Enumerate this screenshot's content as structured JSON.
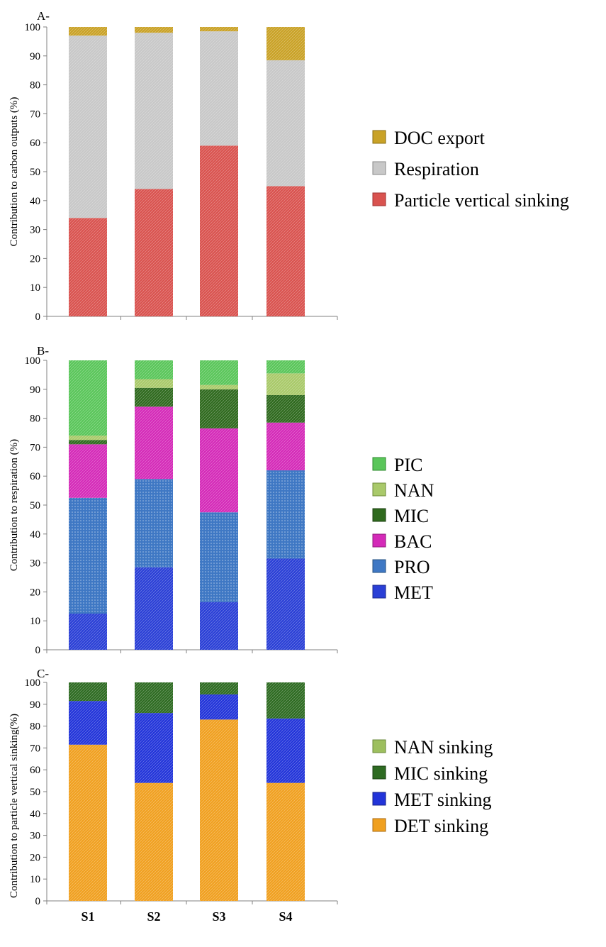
{
  "chart_data": [
    {
      "type": "bar",
      "stacked": true,
      "panel_label": "A-",
      "ylabel": "Contribution to carbon outputs (%)",
      "ylim": [
        0,
        100
      ],
      "yticks": [
        0,
        10,
        20,
        30,
        40,
        50,
        60,
        70,
        80,
        90,
        100
      ],
      "categories": [
        "S1",
        "S2",
        "S3",
        "S4"
      ],
      "series": [
        {
          "name": "Particle vertical sinking",
          "color": "#d9534f",
          "values": [
            34,
            44,
            59,
            45
          ]
        },
        {
          "name": "Respiration",
          "color": "#c8c8c8",
          "values": [
            63,
            54,
            39.5,
            43.5
          ]
        },
        {
          "name": "DOC export",
          "color": "#c9a227",
          "values": [
            3,
            2,
            1.5,
            11.5
          ]
        }
      ]
    },
    {
      "type": "bar",
      "stacked": true,
      "panel_label": "B-",
      "ylabel": "Contribution to respiration (%)",
      "ylim": [
        0,
        100
      ],
      "yticks": [
        0,
        10,
        20,
        30,
        40,
        50,
        60,
        70,
        80,
        90,
        100
      ],
      "categories": [
        "S1",
        "S2",
        "S3",
        "S4"
      ],
      "series": [
        {
          "name": "MET",
          "color": "#2a3fd6",
          "values": [
            12.5,
            28.5,
            16.5,
            31.5
          ]
        },
        {
          "name": "PRO",
          "color": "#3f78c4",
          "values": [
            40,
            30.5,
            31,
            30.5
          ]
        },
        {
          "name": "BAC",
          "color": "#d42ab8",
          "values": [
            18.5,
            25,
            29,
            16.5
          ]
        },
        {
          "name": "MIC",
          "color": "#2f6a1e",
          "values": [
            1.5,
            6.5,
            13.5,
            9.5
          ]
        },
        {
          "name": "NAN",
          "color": "#a9c96a",
          "values": [
            1.5,
            3,
            1.5,
            7.5
          ]
        },
        {
          "name": "PIC",
          "color": "#5ac65a",
          "values": [
            26,
            6.5,
            8.5,
            4.5
          ]
        }
      ]
    },
    {
      "type": "bar",
      "stacked": true,
      "panel_label": "C-",
      "ylabel": "Contribution to particle vertical sinking(%)",
      "ylim": [
        0,
        100
      ],
      "yticks": [
        0,
        10,
        20,
        30,
        40,
        50,
        60,
        70,
        80,
        90,
        100
      ],
      "categories": [
        "S1",
        "S2",
        "S3",
        "S4"
      ],
      "series": [
        {
          "name": "DET sinking",
          "color": "#f0a020",
          "values": [
            71.5,
            54,
            83,
            54
          ]
        },
        {
          "name": "MET sinking",
          "color": "#2234d9",
          "values": [
            20,
            32,
            11.5,
            29.5
          ]
        },
        {
          "name": "MIC sinking",
          "color": "#2e6b22",
          "values": [
            8.5,
            14,
            5.5,
            16.5
          ]
        },
        {
          "name": "NAN sinking",
          "color": "#9dbf5e",
          "values": [
            0,
            0,
            0,
            0
          ]
        }
      ]
    }
  ]
}
